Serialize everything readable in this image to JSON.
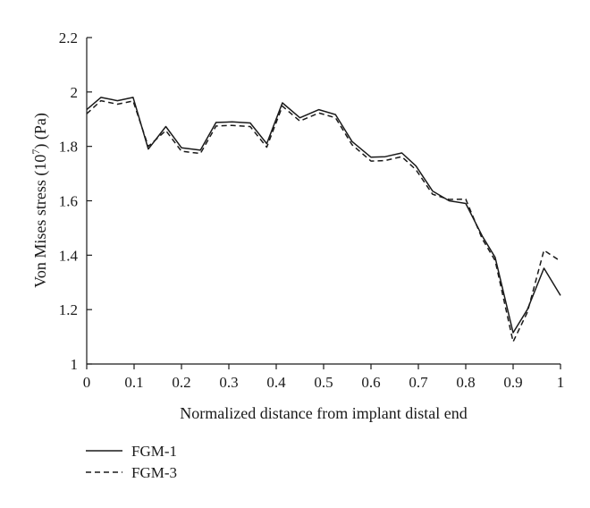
{
  "chart_data": {
    "type": "line",
    "title": "",
    "xlabel": "Normalized distance from implant distal end",
    "ylabel_main": "Von Mises stress (10",
    "ylabel_exp": "7",
    "ylabel_tail": ") (Pa)",
    "xlim": [
      0,
      1
    ],
    "ylim": [
      1,
      2.2
    ],
    "x_ticks": [
      0,
      0.1,
      0.2,
      0.3,
      0.4,
      0.5,
      0.6,
      0.7,
      0.8,
      0.9,
      1
    ],
    "x_tick_labels": [
      "0",
      "0.1",
      "0.2",
      "0.3",
      "0.4",
      "0.5",
      "0.6",
      "0.7",
      "0.8",
      "0.9",
      "1"
    ],
    "y_ticks": [
      1,
      1.2,
      1.4,
      1.6,
      1.8,
      2,
      2.2
    ],
    "y_tick_labels": [
      "1",
      "1.2",
      "1.4",
      "1.6",
      "1.8",
      "2",
      "2.2"
    ],
    "grid": false,
    "legend_position": "bottom-left",
    "series": [
      {
        "name": "FGM-1",
        "style": "solid",
        "color": "#1a1a1a",
        "points": [
          [
            0,
            1.935
          ],
          [
            0.03,
            1.98
          ],
          [
            0.065,
            1.968
          ],
          [
            0.098,
            1.98
          ],
          [
            0.13,
            1.79
          ],
          [
            0.167,
            1.873
          ],
          [
            0.2,
            1.795
          ],
          [
            0.24,
            1.786
          ],
          [
            0.273,
            1.888
          ],
          [
            0.307,
            1.89
          ],
          [
            0.345,
            1.886
          ],
          [
            0.38,
            1.81
          ],
          [
            0.413,
            1.96
          ],
          [
            0.45,
            1.905
          ],
          [
            0.49,
            1.935
          ],
          [
            0.525,
            1.917
          ],
          [
            0.56,
            1.818
          ],
          [
            0.6,
            1.76
          ],
          [
            0.63,
            1.762
          ],
          [
            0.665,
            1.776
          ],
          [
            0.695,
            1.728
          ],
          [
            0.73,
            1.636
          ],
          [
            0.765,
            1.6
          ],
          [
            0.8,
            1.59
          ],
          [
            0.835,
            1.47
          ],
          [
            0.862,
            1.392
          ],
          [
            0.9,
            1.115
          ],
          [
            0.93,
            1.2
          ],
          [
            0.965,
            1.352
          ],
          [
            1.0,
            1.252
          ]
        ]
      },
      {
        "name": "FGM-3",
        "style": "dashed",
        "color": "#1a1a1a",
        "points": [
          [
            0,
            1.92
          ],
          [
            0.03,
            1.968
          ],
          [
            0.065,
            1.955
          ],
          [
            0.098,
            1.967
          ],
          [
            0.13,
            1.8
          ],
          [
            0.167,
            1.858
          ],
          [
            0.2,
            1.782
          ],
          [
            0.24,
            1.774
          ],
          [
            0.273,
            1.875
          ],
          [
            0.307,
            1.877
          ],
          [
            0.345,
            1.873
          ],
          [
            0.38,
            1.797
          ],
          [
            0.413,
            1.948
          ],
          [
            0.45,
            1.893
          ],
          [
            0.49,
            1.923
          ],
          [
            0.525,
            1.905
          ],
          [
            0.56,
            1.806
          ],
          [
            0.6,
            1.746
          ],
          [
            0.63,
            1.748
          ],
          [
            0.665,
            1.762
          ],
          [
            0.695,
            1.714
          ],
          [
            0.73,
            1.624
          ],
          [
            0.765,
            1.605
          ],
          [
            0.8,
            1.606
          ],
          [
            0.835,
            1.46
          ],
          [
            0.862,
            1.38
          ],
          [
            0.9,
            1.082
          ],
          [
            0.93,
            1.19
          ],
          [
            0.965,
            1.418
          ],
          [
            1.0,
            1.378
          ]
        ]
      }
    ]
  }
}
